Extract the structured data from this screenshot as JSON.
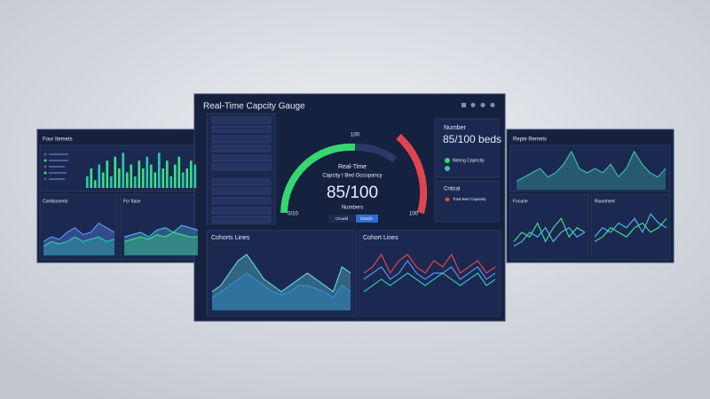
{
  "center": {
    "title": "Real-Time Capcity Gauge",
    "gauge": {
      "max": 100,
      "min_label": "0/10",
      "heading": "Real-Time",
      "subtitle": "Capcity I Bed Occupancy",
      "value_label": "85/100",
      "caption": "Numbers",
      "buttons": [
        "Cloudd",
        "Details"
      ]
    },
    "stats": {
      "heading": "Number",
      "value_label": "85/100 beds",
      "legend": [
        "Nering Copecity"
      ],
      "critical": "Critical",
      "critical_legend": "Total Bed Capacity"
    },
    "bottom_titles": [
      "Cohorts Lines",
      "Cohort Lines"
    ]
  },
  "left": {
    "title": "Four Itemets",
    "sub_titles": [
      "Combonents",
      "Fcr Itase"
    ]
  },
  "right": {
    "title": "Repie Remets",
    "sub_titles": [
      "Focurie",
      "Rouxtnent"
    ]
  },
  "charts": [
    {
      "type": "bar",
      "ylim": [
        0,
        10
      ],
      "series": [
        {
          "color": "#3ddc84",
          "values": [
            3,
            5,
            2,
            6,
            4,
            7,
            3,
            8,
            5,
            9,
            4,
            6,
            3,
            7,
            5,
            8,
            6,
            4,
            9,
            5,
            7,
            3,
            6,
            8,
            4,
            5,
            7,
            6
          ]
        }
      ]
    },
    {
      "type": "area",
      "ylim": [
        0,
        10
      ],
      "series": [
        {
          "color": "#5b8ff0",
          "values": [
            3,
            4,
            3.5,
            5,
            6,
            4.5,
            5,
            7,
            6,
            5
          ]
        },
        {
          "color": "#2fc4b2",
          "values": [
            2,
            3,
            2.5,
            3,
            4,
            3,
            3.5,
            4,
            3,
            3.5
          ]
        }
      ]
    },
    {
      "type": "area",
      "ylim": [
        0,
        10
      ],
      "series": [
        {
          "color": "#4fb3e8",
          "values": [
            4,
            4.5,
            5,
            4,
            5.5,
            6,
            5,
            6.5,
            6,
            5.5
          ]
        },
        {
          "color": "#3ddc84",
          "values": [
            3,
            3.5,
            4,
            3.5,
            4.5,
            4,
            5,
            4.5,
            4,
            4
          ]
        }
      ]
    },
    {
      "type": "area",
      "ylim": [
        0,
        10
      ],
      "series": [
        {
          "color": "#5fd0d8",
          "values": [
            3,
            4,
            6,
            8,
            9,
            7,
            5,
            4,
            3,
            4,
            5,
            6,
            5,
            4,
            3,
            7,
            6
          ]
        },
        {
          "color": "#2f8fd0",
          "values": [
            2,
            3,
            4,
            5,
            6,
            5,
            4,
            3,
            2.5,
            3,
            4,
            4,
            3.5,
            3,
            2,
            4,
            3
          ]
        }
      ]
    },
    {
      "type": "line",
      "ylim": [
        0,
        10
      ],
      "series": [
        {
          "color": "#e0454f",
          "values": [
            6,
            7,
            9,
            6,
            8,
            9,
            7,
            6,
            8,
            7,
            9,
            6,
            7,
            8,
            6,
            7
          ]
        },
        {
          "color": "#5b8ff0",
          "values": [
            5,
            6,
            7,
            5,
            6,
            8,
            6,
            5,
            6,
            6,
            7,
            5,
            6,
            7,
            5,
            6
          ]
        },
        {
          "color": "#2fc4b2",
          "values": [
            3,
            4,
            5,
            4,
            5,
            6,
            5,
            4,
            5,
            6,
            5,
            4,
            5,
            6,
            4,
            5
          ]
        }
      ]
    },
    {
      "type": "area",
      "ylim": [
        0,
        10
      ],
      "series": [
        {
          "color": "#3fb8b0",
          "values": [
            2,
            3,
            4,
            5,
            3,
            4,
            6,
            9,
            5,
            4,
            5,
            4,
            6,
            3,
            5,
            9,
            6,
            4,
            3,
            5
          ]
        }
      ]
    },
    {
      "type": "line",
      "ylim": [
        0,
        10
      ],
      "series": [
        {
          "color": "#3ddc84",
          "values": [
            3,
            5,
            4,
            7,
            3,
            6,
            8,
            4,
            6,
            5
          ]
        },
        {
          "color": "#4fb3e8",
          "values": [
            2,
            3,
            5,
            4,
            6,
            3,
            5,
            6,
            4,
            5
          ]
        }
      ]
    },
    {
      "type": "line",
      "ylim": [
        0,
        10
      ],
      "series": [
        {
          "color": "#4fb3e8",
          "values": [
            4,
            6,
            5,
            7,
            6,
            8,
            5,
            9,
            7,
            6
          ]
        },
        {
          "color": "#3ddc84",
          "values": [
            3,
            4,
            6,
            5,
            4,
            6,
            7,
            5,
            6,
            8
          ]
        }
      ]
    }
  ]
}
